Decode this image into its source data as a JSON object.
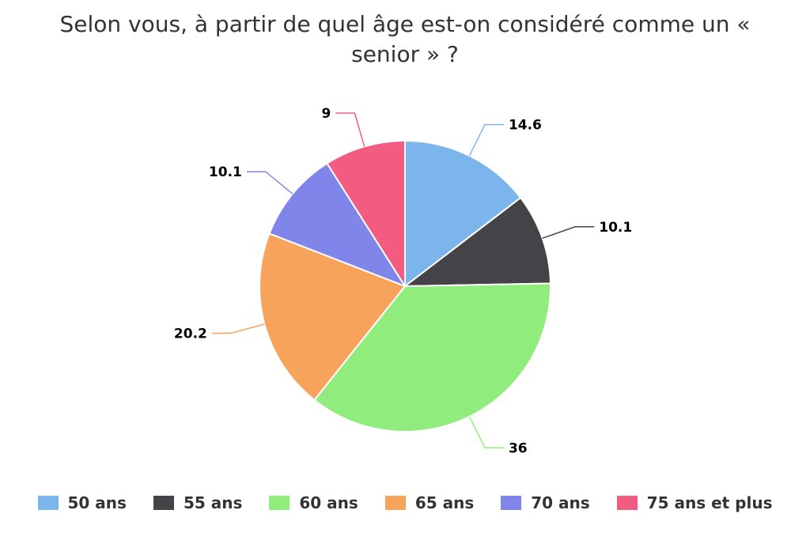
{
  "chart_data": {
    "type": "pie",
    "title": "Selon vous, à partir de quel âge est-on considéré comme un « senior » ?",
    "categories": [
      "50 ans",
      "55 ans",
      "60 ans",
      "65 ans",
      "70 ans",
      "75 ans et plus"
    ],
    "values": [
      14.6,
      10.1,
      36,
      20.2,
      10.1,
      9
    ],
    "data_labels": [
      "14.6",
      "10.1",
      "36",
      "20.2",
      "10.1",
      "9"
    ],
    "colors": [
      "#7cb5ec",
      "#434348",
      "#90ed7d",
      "#f7a35c",
      "#8085e9",
      "#f15c80"
    ],
    "legend_position": "bottom"
  }
}
